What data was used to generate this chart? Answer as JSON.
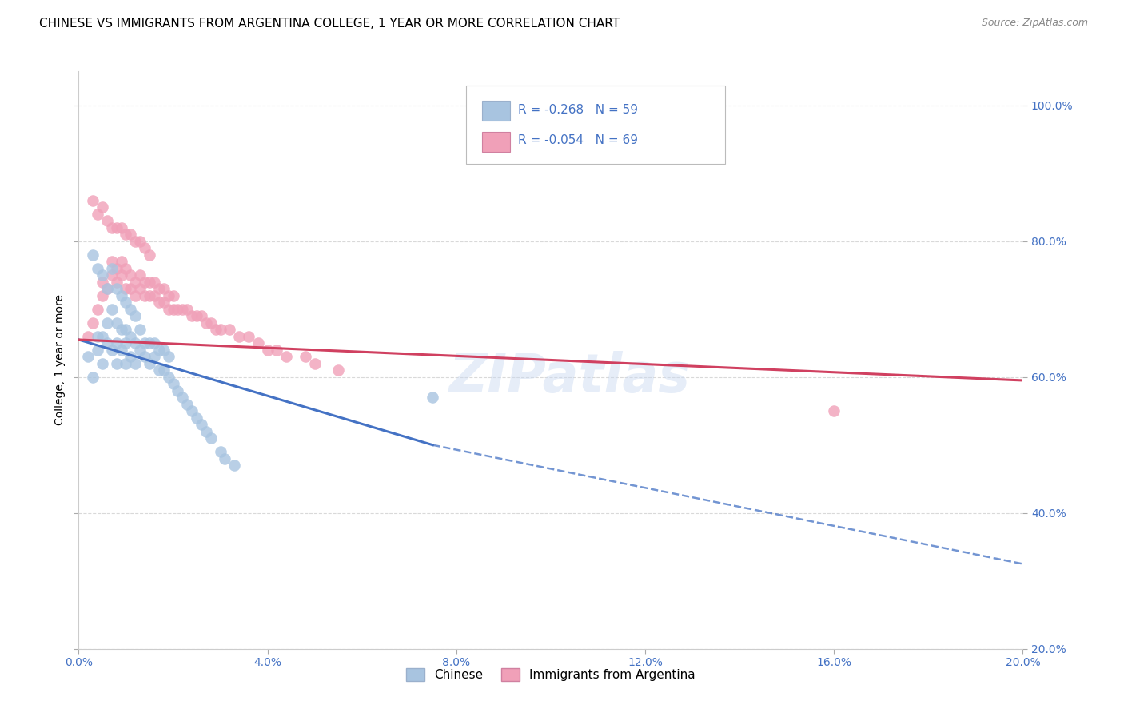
{
  "title": "CHINESE VS IMMIGRANTS FROM ARGENTINA COLLEGE, 1 YEAR OR MORE CORRELATION CHART",
  "source": "Source: ZipAtlas.com",
  "ylabel": "College, 1 year or more",
  "legend_chinese": "Chinese",
  "legend_argentina": "Immigrants from Argentina",
  "r_chinese": -0.268,
  "n_chinese": 59,
  "r_argentina": -0.054,
  "n_argentina": 69,
  "xmin": 0.0,
  "xmax": 0.2,
  "ymin": 0.2,
  "ymax": 1.05,
  "xticks": [
    0.0,
    0.04,
    0.08,
    0.12,
    0.16,
    0.2
  ],
  "yticks": [
    0.2,
    0.4,
    0.6,
    0.8,
    1.0
  ],
  "color_chinese": "#a8c4e0",
  "color_argentina": "#f0a0b8",
  "line_color_chinese": "#4472c4",
  "line_color_argentina": "#d04060",
  "watermark": "ZIPatlas",
  "chinese_x": [
    0.002,
    0.003,
    0.004,
    0.004,
    0.005,
    0.005,
    0.006,
    0.006,
    0.007,
    0.007,
    0.008,
    0.008,
    0.008,
    0.009,
    0.009,
    0.01,
    0.01,
    0.01,
    0.011,
    0.011,
    0.012,
    0.012,
    0.013,
    0.013,
    0.014,
    0.014,
    0.015,
    0.015,
    0.016,
    0.016,
    0.017,
    0.017,
    0.018,
    0.018,
    0.019,
    0.019,
    0.02,
    0.021,
    0.022,
    0.023,
    0.024,
    0.025,
    0.026,
    0.027,
    0.028,
    0.03,
    0.031,
    0.033,
    0.003,
    0.004,
    0.005,
    0.006,
    0.007,
    0.008,
    0.009,
    0.01,
    0.011,
    0.012,
    0.075
  ],
  "chinese_y": [
    0.63,
    0.6,
    0.64,
    0.66,
    0.62,
    0.66,
    0.65,
    0.68,
    0.64,
    0.7,
    0.62,
    0.65,
    0.68,
    0.64,
    0.67,
    0.62,
    0.65,
    0.67,
    0.63,
    0.66,
    0.62,
    0.65,
    0.64,
    0.67,
    0.63,
    0.65,
    0.62,
    0.65,
    0.63,
    0.65,
    0.61,
    0.64,
    0.61,
    0.64,
    0.6,
    0.63,
    0.59,
    0.58,
    0.57,
    0.56,
    0.55,
    0.54,
    0.53,
    0.52,
    0.51,
    0.49,
    0.48,
    0.47,
    0.78,
    0.76,
    0.75,
    0.73,
    0.76,
    0.73,
    0.72,
    0.71,
    0.7,
    0.69,
    0.57
  ],
  "argentina_x": [
    0.002,
    0.003,
    0.004,
    0.005,
    0.005,
    0.006,
    0.007,
    0.007,
    0.008,
    0.008,
    0.009,
    0.009,
    0.01,
    0.01,
    0.011,
    0.011,
    0.012,
    0.012,
    0.013,
    0.013,
    0.014,
    0.014,
    0.015,
    0.015,
    0.016,
    0.016,
    0.017,
    0.017,
    0.018,
    0.018,
    0.019,
    0.019,
    0.02,
    0.02,
    0.021,
    0.022,
    0.023,
    0.024,
    0.025,
    0.026,
    0.027,
    0.028,
    0.029,
    0.03,
    0.032,
    0.034,
    0.036,
    0.038,
    0.04,
    0.042,
    0.044,
    0.048,
    0.05,
    0.055,
    0.003,
    0.004,
    0.005,
    0.006,
    0.007,
    0.008,
    0.009,
    0.01,
    0.011,
    0.012,
    0.013,
    0.014,
    0.015,
    0.1,
    0.16
  ],
  "argentina_y": [
    0.66,
    0.68,
    0.7,
    0.72,
    0.74,
    0.73,
    0.75,
    0.77,
    0.74,
    0.76,
    0.75,
    0.77,
    0.73,
    0.76,
    0.73,
    0.75,
    0.72,
    0.74,
    0.73,
    0.75,
    0.72,
    0.74,
    0.72,
    0.74,
    0.72,
    0.74,
    0.71,
    0.73,
    0.71,
    0.73,
    0.7,
    0.72,
    0.7,
    0.72,
    0.7,
    0.7,
    0.7,
    0.69,
    0.69,
    0.69,
    0.68,
    0.68,
    0.67,
    0.67,
    0.67,
    0.66,
    0.66,
    0.65,
    0.64,
    0.64,
    0.63,
    0.63,
    0.62,
    0.61,
    0.86,
    0.84,
    0.85,
    0.83,
    0.82,
    0.82,
    0.82,
    0.81,
    0.81,
    0.8,
    0.8,
    0.79,
    0.78,
    0.93,
    0.55
  ],
  "bg_color": "#ffffff",
  "grid_color": "#d0d0d0",
  "axis_label_color": "#4472c4",
  "title_fontsize": 11,
  "label_fontsize": 10,
  "tick_fontsize": 10,
  "chinese_line_end_x": 0.075,
  "argentina_line_end_x": 0.2
}
